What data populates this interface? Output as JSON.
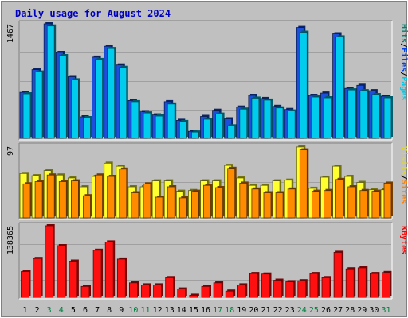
{
  "chart_data": {
    "type": "bar",
    "title": "Daily usage for August 2024",
    "categories": [
      "1",
      "2",
      "3",
      "4",
      "5",
      "6",
      "7",
      "8",
      "9",
      "10",
      "11",
      "12",
      "13",
      "14",
      "15",
      "16",
      "17",
      "18",
      "19",
      "20",
      "21",
      "22",
      "23",
      "24",
      "25",
      "26",
      "27",
      "28",
      "29",
      "30",
      "31"
    ],
    "weekend_days": [
      "3",
      "4",
      "10",
      "11",
      "17",
      "18",
      "24",
      "25",
      "31"
    ],
    "panels": [
      {
        "id": "hits-files-pages",
        "max_label": "1467",
        "ylim": [
          0,
          1467
        ],
        "legend": [
          {
            "name": "Pages",
            "color": "#00c8e6"
          },
          {
            "name": "Files",
            "color": "#0040e6"
          },
          {
            "name": "Hits",
            "color": "#008070"
          }
        ],
        "series": [
          {
            "name": "Hits",
            "color": "#1c50dc",
            "values": [
              590,
              880,
              1467,
              1100,
              790,
              275,
              1040,
              1180,
              940,
              485,
              340,
              300,
              470,
              230,
              90,
              280,
              360,
              250,
              400,
              550,
              510,
              410,
              370,
              1420,
              550,
              580,
              1340,
              640,
              680,
              610,
              540
            ]
          },
          {
            "name": "Pages",
            "color": "#00ccee",
            "values": [
              570,
              850,
              1440,
              1060,
              750,
              265,
              1010,
              1150,
              910,
              470,
              325,
              285,
              440,
              215,
              80,
              245,
              310,
              160,
              375,
              515,
              490,
              390,
              350,
              1360,
              530,
              520,
              1300,
              620,
              610,
              560,
              520
            ]
          }
        ]
      },
      {
        "id": "visits-sites",
        "max_label": "97",
        "ylim": [
          0,
          97
        ],
        "legend": [
          {
            "name": "Sites",
            "color": "#ff8000"
          },
          {
            "name": "Visits",
            "color": "#e6dc00"
          }
        ],
        "series": [
          {
            "name": "Visits",
            "color": "#ffff30",
            "values": [
              60,
              57,
              64,
              58,
              54,
              42,
              56,
              74,
              70,
              42,
              42,
              50,
              50,
              36,
              37,
              50,
              50,
              71,
              54,
              44,
              44,
              50,
              51,
              96,
              40,
              55,
              70,
              56,
              48,
              38,
              38
            ]
          },
          {
            "name": "Sites",
            "color": "#ff8c00",
            "values": [
              46,
              49,
              58,
              49,
              50,
              30,
              58,
              56,
              66,
              34,
              46,
              28,
              42,
              27,
              36,
              44,
              41,
              67,
              47,
              39,
              34,
              34,
              39,
              92,
              36,
              37,
              52,
              42,
              37,
              36,
              47
            ]
          }
        ]
      },
      {
        "id": "kbytes",
        "max_label": "138365",
        "ylim": [
          0,
          138365
        ],
        "legend": [
          {
            "name": "KBytes",
            "color": "#ff0000"
          }
        ],
        "series": [
          {
            "name": "KBytes",
            "color": "#ff1010",
            "values": [
              50000,
              75000,
              138365,
              100000,
              70000,
              21000,
              91000,
              107000,
              74000,
              28000,
              24000,
              24000,
              38000,
              16000,
              4000,
              21000,
              28000,
              12000,
              24000,
              46000,
              45000,
              33000,
              30000,
              32000,
              46000,
              38000,
              87000,
              55000,
              57000,
              46000,
              48000
            ]
          }
        ]
      }
    ],
    "colors": {
      "background": "#c0c0c0",
      "title": "#0000c0",
      "axis_text": "#000000",
      "weekend_text": "#008040"
    }
  }
}
